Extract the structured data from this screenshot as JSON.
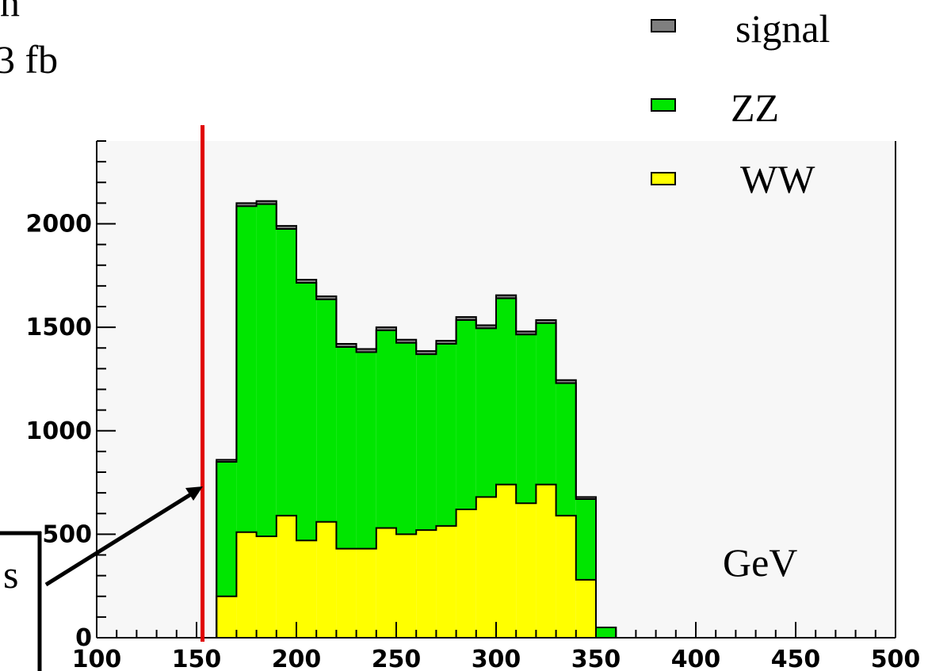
{
  "page": {
    "top_text_line1": "n",
    "top_text_line2": "3 fb",
    "side_label": "s",
    "unit_label": "GeV"
  },
  "legend": [
    {
      "label": "signal",
      "color": "#7f7f7f"
    },
    {
      "label": "ZZ",
      "color": "#00e600"
    },
    {
      "label": "WW",
      "color": "#ffff00"
    }
  ],
  "chart_data": {
    "type": "bar",
    "stacked": true,
    "title": "",
    "xlabel": "GeV",
    "ylabel": "",
    "xlim": [
      100,
      500
    ],
    "ylim": [
      0,
      2400
    ],
    "bin_width": 10,
    "x_ticks": [
      100,
      150,
      200,
      250,
      300,
      350,
      400,
      450,
      500
    ],
    "y_ticks": [
      0,
      500,
      1000,
      1500,
      2000
    ],
    "bin_edges_start": [
      150,
      160,
      170,
      180,
      190,
      200,
      210,
      220,
      230,
      240,
      250,
      260,
      270,
      280,
      290,
      300,
      310,
      320,
      330,
      340,
      350
    ],
    "series": [
      {
        "name": "WW",
        "color": "#ffff00",
        "values": [
          0,
          200,
          510,
          490,
          590,
          470,
          560,
          430,
          430,
          530,
          500,
          520,
          540,
          620,
          680,
          740,
          650,
          740,
          590,
          280,
          0
        ]
      },
      {
        "name": "ZZ",
        "color": "#00e600",
        "values": [
          0,
          650,
          1575,
          1605,
          1385,
          1245,
          1075,
          975,
          950,
          955,
          925,
          850,
          880,
          915,
          815,
          900,
          815,
          780,
          640,
          390,
          50
        ]
      },
      {
        "name": "signal",
        "color": "#7f7f7f",
        "values": [
          0,
          10,
          15,
          15,
          15,
          15,
          15,
          15,
          15,
          15,
          15,
          15,
          15,
          15,
          15,
          15,
          15,
          15,
          15,
          10,
          0
        ]
      }
    ],
    "cut_line_x": 153,
    "cut_line_color": "#e00000",
    "grid": false,
    "legend_position": "top-right"
  }
}
